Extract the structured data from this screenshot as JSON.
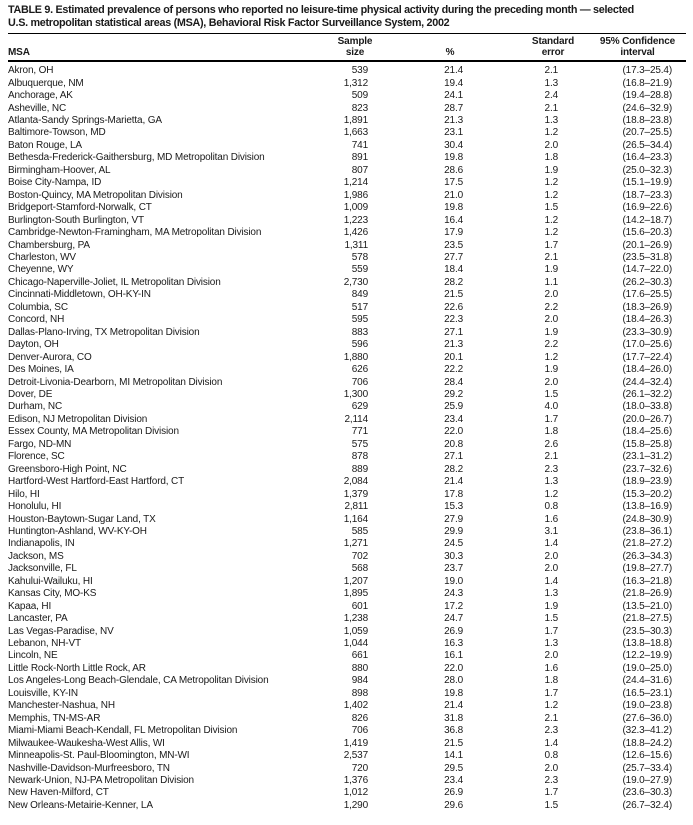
{
  "title": {
    "line1": "TABLE 9. Estimated prevalence of persons who reported no leisure-time physical activity during the preceding month — selected",
    "line2": "U.S. metropolitan statistical areas (MSA), Behavioral Risk Factor Surveillance System, 2002"
  },
  "table": {
    "header": {
      "msa": "MSA",
      "sample_line1": "Sample",
      "sample_line2": "size",
      "percent": "%",
      "stderr_line1": "Standard",
      "stderr_line2": "error",
      "ci_line1": "95% Confidence",
      "ci_line2": "interval"
    },
    "rows": [
      {
        "msa": "Akron, OH",
        "sample": "539",
        "pct": "21.4",
        "se": "2.1",
        "ci": "(17.3–25.4)"
      },
      {
        "msa": "Albuquerque, NM",
        "sample": "1,312",
        "pct": "19.4",
        "se": "1.3",
        "ci": "(16.8–21.9)"
      },
      {
        "msa": "Anchorage, AK",
        "sample": "509",
        "pct": "24.1",
        "se": "2.4",
        "ci": "(19.4–28.8)"
      },
      {
        "msa": "Asheville, NC",
        "sample": "823",
        "pct": "28.7",
        "se": "2.1",
        "ci": "(24.6–32.9)"
      },
      {
        "msa": "Atlanta-Sandy Springs-Marietta, GA",
        "sample": "1,891",
        "pct": "21.3",
        "se": "1.3",
        "ci": "(18.8–23.8)"
      },
      {
        "msa": "Baltimore-Towson, MD",
        "sample": "1,663",
        "pct": "23.1",
        "se": "1.2",
        "ci": "(20.7–25.5)"
      },
      {
        "msa": "Baton Rouge, LA",
        "sample": "741",
        "pct": "30.4",
        "se": "2.0",
        "ci": "(26.5–34.4)"
      },
      {
        "msa": "Bethesda-Frederick-Gaithersburg, MD Metropolitan Division",
        "sample": "891",
        "pct": "19.8",
        "se": "1.8",
        "ci": "(16.4–23.3)"
      },
      {
        "msa": "Birmingham-Hoover, AL",
        "sample": "807",
        "pct": "28.6",
        "se": "1.9",
        "ci": "(25.0–32.3)"
      },
      {
        "msa": "Boise City-Nampa, ID",
        "sample": "1,214",
        "pct": "17.5",
        "se": "1.2",
        "ci": "(15.1–19.9)"
      },
      {
        "msa": "Boston-Quincy, MA Metropolitan Division",
        "sample": "1,986",
        "pct": "21.0",
        "se": "1.2",
        "ci": "(18.7–23.3)"
      },
      {
        "msa": "Bridgeport-Stamford-Norwalk, CT",
        "sample": "1,009",
        "pct": "19.8",
        "se": "1.5",
        "ci": "(16.9–22.6)"
      },
      {
        "msa": "Burlington-South Burlington, VT",
        "sample": "1,223",
        "pct": "16.4",
        "se": "1.2",
        "ci": "(14.2–18.7)"
      },
      {
        "msa": "Cambridge-Newton-Framingham, MA Metropolitan Division",
        "sample": "1,426",
        "pct": "17.9",
        "se": "1.2",
        "ci": "(15.6–20.3)"
      },
      {
        "msa": "Chambersburg, PA",
        "sample": "1,311",
        "pct": "23.5",
        "se": "1.7",
        "ci": "(20.1–26.9)"
      },
      {
        "msa": "Charleston, WV",
        "sample": "578",
        "pct": "27.7",
        "se": "2.1",
        "ci": "(23.5–31.8)"
      },
      {
        "msa": "Cheyenne, WY",
        "sample": "559",
        "pct": "18.4",
        "se": "1.9",
        "ci": "(14.7–22.0)"
      },
      {
        "msa": "Chicago-Naperville-Joliet, IL Metropolitan Division",
        "sample": "2,730",
        "pct": "28.2",
        "se": "1.1",
        "ci": "(26.2–30.3)"
      },
      {
        "msa": "Cincinnati-Middletown, OH-KY-IN",
        "sample": "849",
        "pct": "21.5",
        "se": "2.0",
        "ci": "(17.6–25.5)"
      },
      {
        "msa": "Columbia, SC",
        "sample": "517",
        "pct": "22.6",
        "se": "2.2",
        "ci": "(18.3–26.9)"
      },
      {
        "msa": "Concord, NH",
        "sample": "595",
        "pct": "22.3",
        "se": "2.0",
        "ci": "(18.4–26.3)"
      },
      {
        "msa": "Dallas-Plano-Irving, TX Metropolitan Division",
        "sample": "883",
        "pct": "27.1",
        "se": "1.9",
        "ci": "(23.3–30.9)"
      },
      {
        "msa": "Dayton, OH",
        "sample": "596",
        "pct": "21.3",
        "se": "2.2",
        "ci": "(17.0–25.6)"
      },
      {
        "msa": "Denver-Aurora, CO",
        "sample": "1,880",
        "pct": "20.1",
        "se": "1.2",
        "ci": "(17.7–22.4)"
      },
      {
        "msa": "Des Moines, IA",
        "sample": "626",
        "pct": "22.2",
        "se": "1.9",
        "ci": "(18.4–26.0)"
      },
      {
        "msa": "Detroit-Livonia-Dearborn, MI Metropolitan Division",
        "sample": "706",
        "pct": "28.4",
        "se": "2.0",
        "ci": "(24.4–32.4)"
      },
      {
        "msa": "Dover, DE",
        "sample": "1,300",
        "pct": "29.2",
        "se": "1.5",
        "ci": "(26.1–32.2)"
      },
      {
        "msa": "Durham, NC",
        "sample": "629",
        "pct": "25.9",
        "se": "4.0",
        "ci": "(18.0–33.8)"
      },
      {
        "msa": "Edison, NJ Metropolitan Division",
        "sample": "2,114",
        "pct": "23.4",
        "se": "1.7",
        "ci": "(20.0–26.7)"
      },
      {
        "msa": "Essex County, MA Metropolitan Division",
        "sample": "771",
        "pct": "22.0",
        "se": "1.8",
        "ci": "(18.4–25.6)"
      },
      {
        "msa": "Fargo, ND-MN",
        "sample": "575",
        "pct": "20.8",
        "se": "2.6",
        "ci": "(15.8–25.8)"
      },
      {
        "msa": "Florence, SC",
        "sample": "878",
        "pct": "27.1",
        "se": "2.1",
        "ci": "(23.1–31.2)"
      },
      {
        "msa": "Greensboro-High Point, NC",
        "sample": "889",
        "pct": "28.2",
        "se": "2.3",
        "ci": "(23.7–32.6)"
      },
      {
        "msa": "Hartford-West Hartford-East Hartford, CT",
        "sample": "2,084",
        "pct": "21.4",
        "se": "1.3",
        "ci": "(18.9–23.9)"
      },
      {
        "msa": "Hilo, HI",
        "sample": "1,379",
        "pct": "17.8",
        "se": "1.2",
        "ci": "(15.3–20.2)"
      },
      {
        "msa": "Honolulu, HI",
        "sample": "2,811",
        "pct": "15.3",
        "se": "0.8",
        "ci": "(13.8–16.9)"
      },
      {
        "msa": "Houston-Baytown-Sugar Land, TX",
        "sample": "1,164",
        "pct": "27.9",
        "se": "1.6",
        "ci": "(24.8–30.9)"
      },
      {
        "msa": "Huntington-Ashland, WV-KY-OH",
        "sample": "585",
        "pct": "29.9",
        "se": "3.1",
        "ci": "(23.8–36.1)"
      },
      {
        "msa": "Indianapolis, IN",
        "sample": "1,271",
        "pct": "24.5",
        "se": "1.4",
        "ci": "(21.8–27.2)"
      },
      {
        "msa": "Jackson, MS",
        "sample": "702",
        "pct": "30.3",
        "se": "2.0",
        "ci": "(26.3–34.3)"
      },
      {
        "msa": "Jacksonville, FL",
        "sample": "568",
        "pct": "23.7",
        "se": "2.0",
        "ci": "(19.8–27.7)"
      },
      {
        "msa": "Kahului-Wailuku, HI",
        "sample": "1,207",
        "pct": "19.0",
        "se": "1.4",
        "ci": "(16.3–21.8)"
      },
      {
        "msa": "Kansas City, MO-KS",
        "sample": "1,895",
        "pct": "24.3",
        "se": "1.3",
        "ci": "(21.8–26.9)"
      },
      {
        "msa": "Kapaa, HI",
        "sample": "601",
        "pct": "17.2",
        "se": "1.9",
        "ci": "(13.5–21.0)"
      },
      {
        "msa": "Lancaster, PA",
        "sample": "1,238",
        "pct": "24.7",
        "se": "1.5",
        "ci": "(21.8–27.5)"
      },
      {
        "msa": "Las Vegas-Paradise, NV",
        "sample": "1,059",
        "pct": "26.9",
        "se": "1.7",
        "ci": "(23.5–30.3)"
      },
      {
        "msa": "Lebanon, NH-VT",
        "sample": "1,044",
        "pct": "16.3",
        "se": "1.3",
        "ci": "(13.8–18.8)"
      },
      {
        "msa": "Lincoln, NE",
        "sample": "661",
        "pct": "16.1",
        "se": "2.0",
        "ci": "(12.2–19.9)"
      },
      {
        "msa": "Little Rock-North Little Rock, AR",
        "sample": "880",
        "pct": "22.0",
        "se": "1.6",
        "ci": "(19.0–25.0)"
      },
      {
        "msa": "Los Angeles-Long Beach-Glendale, CA Metropolitan Division",
        "sample": "984",
        "pct": "28.0",
        "se": "1.8",
        "ci": "(24.4–31.6)"
      },
      {
        "msa": "Louisville, KY-IN",
        "sample": "898",
        "pct": "19.8",
        "se": "1.7",
        "ci": "(16.5–23.1)"
      },
      {
        "msa": "Manchester-Nashua, NH",
        "sample": "1,402",
        "pct": "21.4",
        "se": "1.2",
        "ci": "(19.0–23.8)"
      },
      {
        "msa": "Memphis, TN-MS-AR",
        "sample": "826",
        "pct": "31.8",
        "se": "2.1",
        "ci": "(27.6–36.0)"
      },
      {
        "msa": "Miami-Miami Beach-Kendall, FL Metropolitan Division",
        "sample": "706",
        "pct": "36.8",
        "se": "2.3",
        "ci": "(32.3–41.2)"
      },
      {
        "msa": "Milwaukee-Waukesha-West Allis, WI",
        "sample": "1,419",
        "pct": "21.5",
        "se": "1.4",
        "ci": "(18.8–24.2)"
      },
      {
        "msa": "Minneapolis-St. Paul-Bloomington, MN-WI",
        "sample": "2,537",
        "pct": "14.1",
        "se": "0.8",
        "ci": "(12.6–15.6)"
      },
      {
        "msa": "Nashville-Davidson-Murfreesboro, TN",
        "sample": "720",
        "pct": "29.5",
        "se": "2.0",
        "ci": "(25.7–33.4)"
      },
      {
        "msa": "Newark-Union, NJ-PA Metropolitan Division",
        "sample": "1,376",
        "pct": "23.4",
        "se": "2.3",
        "ci": "(19.0–27.9)"
      },
      {
        "msa": "New Haven-Milford, CT",
        "sample": "1,012",
        "pct": "26.9",
        "se": "1.7",
        "ci": "(23.6–30.3)"
      },
      {
        "msa": "New Orleans-Metairie-Kenner, LA",
        "sample": "1,290",
        "pct": "29.6",
        "se": "1.5",
        "ci": "(26.7–32.4)"
      }
    ]
  }
}
